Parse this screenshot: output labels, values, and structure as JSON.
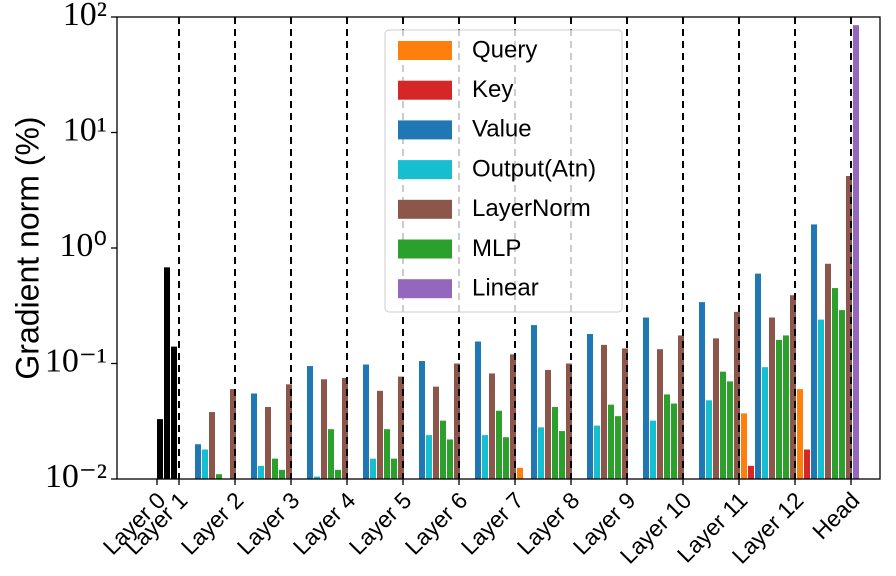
{
  "chart_data": {
    "type": "bar",
    "y_label": "Gradient norm (%)",
    "log_scale": true,
    "ylim": [
      0.01,
      100
    ],
    "yticks": [
      {
        "value": 0.01,
        "label": "10⁻²"
      },
      {
        "value": 0.1,
        "label": "10⁻¹"
      },
      {
        "value": 1,
        "label": "10⁰"
      },
      {
        "value": 10,
        "label": "10¹"
      },
      {
        "value": 100,
        "label": "10²"
      }
    ],
    "categories": [
      "Layer 0",
      "Layer 1",
      "Layer 2",
      "Layer 3",
      "Layer 4",
      "Layer 5",
      "Layer 6",
      "Layer 7",
      "Layer 8",
      "Layer 9",
      "Layer 10",
      "Layer 11",
      "Layer 12",
      "Head"
    ],
    "black_bars": {
      "color": "#000000",
      "values": [
        0.033,
        0.68,
        0.14
      ]
    },
    "series": [
      {
        "name": "Query",
        "color": "#ff7f0e",
        "values": [
          null,
          null,
          null,
          null,
          null,
          null,
          null,
          0.0125,
          null,
          null,
          null,
          0.037,
          0.06,
          null
        ]
      },
      {
        "name": "Key",
        "color": "#d62728",
        "values": [
          null,
          null,
          null,
          null,
          null,
          null,
          null,
          null,
          null,
          null,
          null,
          0.013,
          0.018,
          null
        ]
      },
      {
        "name": "Value",
        "color": "#1f77b4",
        "values": [
          null,
          0.02,
          0.055,
          0.095,
          0.098,
          0.105,
          0.155,
          0.215,
          0.18,
          0.25,
          0.34,
          0.6,
          1.6,
          null
        ]
      },
      {
        "name": "Output(Atn)",
        "color": "#17becf",
        "values": [
          null,
          0.018,
          0.013,
          0.0105,
          0.015,
          0.024,
          0.024,
          0.028,
          0.029,
          0.032,
          0.048,
          0.093,
          0.24,
          null
        ]
      },
      {
        "name": "LayerNorm",
        "color": "#8c564b",
        "values": [
          null,
          [
            0.038,
            0.06
          ],
          [
            0.042,
            0.066
          ],
          [
            0.073,
            0.075
          ],
          [
            0.058,
            0.077
          ],
          [
            0.063,
            0.1
          ],
          [
            0.082,
            0.12
          ],
          [
            0.088,
            0.1
          ],
          [
            0.145,
            0.135
          ],
          [
            0.133,
            0.175
          ],
          [
            0.165,
            0.28
          ],
          [
            0.25,
            0.39
          ],
          [
            0.73,
            4.2
          ],
          null
        ]
      },
      {
        "name": "MLP",
        "color": "#2ca02c",
        "values": [
          null,
          [
            0.011,
            null
          ],
          [
            0.015,
            0.012
          ],
          [
            0.027,
            0.012
          ],
          [
            0.027,
            0.015
          ],
          [
            0.032,
            0.022
          ],
          [
            0.039,
            0.023
          ],
          [
            0.042,
            0.026
          ],
          [
            0.044,
            0.035
          ],
          [
            0.054,
            0.045
          ],
          [
            0.085,
            0.07
          ],
          [
            0.16,
            0.175
          ],
          [
            0.45,
            0.29
          ],
          null
        ]
      },
      {
        "name": "Linear",
        "color": "#9467bd",
        "values": [
          null,
          null,
          null,
          null,
          null,
          null,
          null,
          null,
          null,
          null,
          null,
          null,
          null,
          85
        ]
      }
    ]
  }
}
